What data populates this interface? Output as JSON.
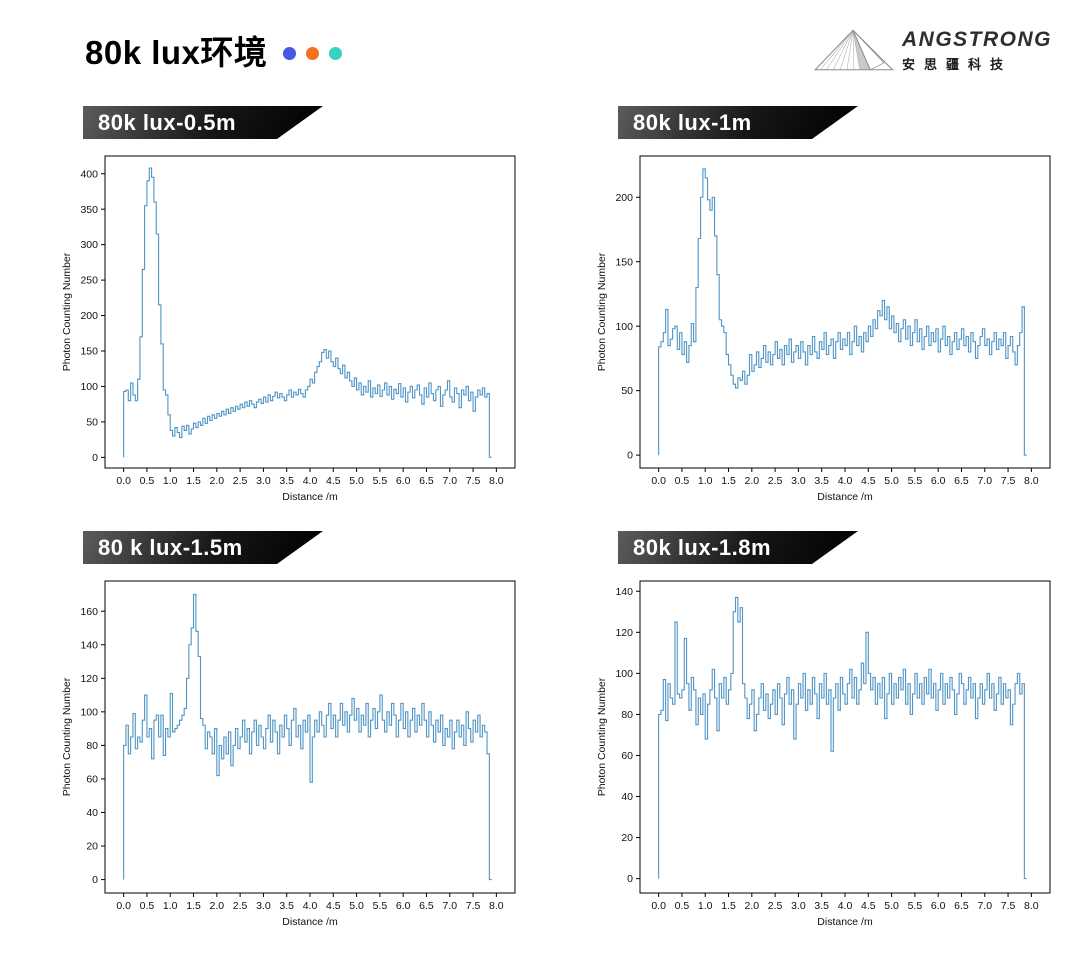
{
  "header": {
    "title": "80k lux环境",
    "dot_colors": [
      "#4856e6",
      "#f56f1c",
      "#34d3c2"
    ]
  },
  "logo": {
    "name": "ANGSTRONG",
    "subtitle": "安思疆科技"
  },
  "style": {
    "line_color": "#4f95c7",
    "spine_color": "#000000",
    "tick_text_color": "#111111"
  },
  "chart_data": [
    {
      "type": "line",
      "title": "80k lux-0.5m",
      "xlabel": "Distance /m",
      "ylabel": "Photon Counting Number",
      "xlim": [
        -0.4,
        8.4
      ],
      "ylim": [
        -15,
        425
      ],
      "xticks": [
        0.0,
        0.5,
        1.0,
        1.5,
        2.0,
        2.5,
        3.0,
        3.5,
        4.0,
        4.5,
        5.0,
        5.5,
        6.0,
        6.5,
        7.0,
        7.5,
        8.0
      ],
      "yticks": [
        0,
        50,
        100,
        150,
        200,
        250,
        300,
        350,
        400
      ],
      "x_start": 0.0,
      "x_step": 0.05,
      "values": [
        0,
        93,
        95,
        80,
        105,
        88,
        80,
        110,
        170,
        265,
        355,
        390,
        408,
        395,
        360,
        315,
        215,
        160,
        95,
        88,
        60,
        38,
        30,
        42,
        35,
        28,
        44,
        38,
        45,
        33,
        40,
        48,
        42,
        50,
        45,
        55,
        48,
        58,
        52,
        60,
        55,
        62,
        58,
        65,
        60,
        68,
        62,
        70,
        65,
        72,
        68,
        75,
        70,
        78,
        72,
        80,
        75,
        70,
        78,
        82,
        76,
        85,
        78,
        88,
        80,
        86,
        92,
        84,
        90,
        85,
        80,
        88,
        95,
        85,
        92,
        88,
        96,
        90,
        85,
        95,
        100,
        110,
        105,
        120,
        128,
        135,
        148,
        152,
        140,
        150,
        135,
        128,
        140,
        125,
        118,
        130,
        112,
        120,
        108,
        100,
        112,
        95,
        105,
        88,
        100,
        92,
        108,
        85,
        98,
        90,
        102,
        86,
        95,
        105,
        88,
        100,
        82,
        96,
        90,
        104,
        85,
        98,
        78,
        92,
        100,
        84,
        95,
        102,
        88,
        75,
        98,
        85,
        105,
        90,
        80,
        95,
        100,
        72,
        88,
        95,
        108,
        85,
        78,
        98,
        90,
        70,
        95,
        88,
        100,
        80,
        92,
        65,
        85,
        95,
        88,
        98,
        85,
        90,
        0
      ]
    },
    {
      "type": "line",
      "title": "80k lux-1m",
      "xlabel": "Distance /m",
      "ylabel": "Photon Counting Number",
      "xlim": [
        -0.4,
        8.4
      ],
      "ylim": [
        -10,
        232
      ],
      "xticks": [
        0.0,
        0.5,
        1.0,
        1.5,
        2.0,
        2.5,
        3.0,
        3.5,
        4.0,
        4.5,
        5.0,
        5.5,
        6.0,
        6.5,
        7.0,
        7.5,
        8.0
      ],
      "yticks": [
        0,
        50,
        100,
        150,
        200
      ],
      "x_start": 0.0,
      "x_step": 0.05,
      "values": [
        0,
        84,
        88,
        95,
        113,
        85,
        90,
        98,
        100,
        82,
        95,
        78,
        88,
        72,
        85,
        102,
        88,
        130,
        168,
        200,
        222,
        215,
        198,
        190,
        200,
        170,
        140,
        105,
        100,
        95,
        78,
        70,
        62,
        55,
        52,
        60,
        58,
        65,
        55,
        62,
        78,
        65,
        70,
        80,
        68,
        75,
        85,
        72,
        80,
        70,
        78,
        88,
        75,
        82,
        70,
        85,
        78,
        90,
        72,
        80,
        85,
        75,
        88,
        80,
        70,
        85,
        78,
        92,
        80,
        75,
        88,
        82,
        95,
        78,
        85,
        90,
        75,
        88,
        95,
        82,
        90,
        85,
        95,
        78,
        88,
        100,
        85,
        92,
        80,
        95,
        88,
        100,
        92,
        105,
        98,
        112,
        108,
        120,
        105,
        115,
        98,
        108,
        95,
        102,
        88,
        98,
        105,
        90,
        100,
        85,
        95,
        105,
        88,
        98,
        82,
        92,
        100,
        85,
        95,
        88,
        98,
        80,
        90,
        100,
        85,
        92,
        78,
        88,
        95,
        82,
        90,
        98,
        85,
        92,
        80,
        95,
        88,
        75,
        85,
        92,
        98,
        85,
        90,
        78,
        88,
        95,
        82,
        90,
        85,
        95,
        75,
        85,
        92,
        80,
        70,
        85,
        95,
        115,
        0
      ]
    },
    {
      "type": "line",
      "title": "80 k lux-1.5m",
      "xlabel": "Distance /m",
      "ylabel": "Photon Counting Number",
      "xlim": [
        -0.4,
        8.4
      ],
      "ylim": [
        -8,
        178
      ],
      "xticks": [
        0.0,
        0.5,
        1.0,
        1.5,
        2.0,
        2.5,
        3.0,
        3.5,
        4.0,
        4.5,
        5.0,
        5.5,
        6.0,
        6.5,
        7.0,
        7.5,
        8.0
      ],
      "yticks": [
        0,
        20,
        40,
        60,
        80,
        100,
        120,
        140,
        160
      ],
      "x_start": 0.0,
      "x_step": 0.05,
      "values": [
        0,
        80,
        92,
        75,
        85,
        99,
        78,
        85,
        82,
        95,
        110,
        85,
        90,
        72,
        95,
        98,
        85,
        98,
        74,
        90,
        85,
        111,
        88,
        90,
        92,
        95,
        98,
        102,
        120,
        140,
        150,
        170,
        148,
        133,
        96,
        92,
        78,
        88,
        85,
        75,
        90,
        62,
        80,
        72,
        85,
        75,
        88,
        68,
        80,
        90,
        78,
        85,
        95,
        82,
        90,
        75,
        88,
        95,
        80,
        92,
        85,
        78,
        90,
        98,
        82,
        95,
        88,
        75,
        92,
        85,
        98,
        90,
        80,
        95,
        102,
        85,
        92,
        78,
        95,
        88,
        98,
        58,
        85,
        95,
        88,
        100,
        92,
        85,
        98,
        105,
        90,
        98,
        85,
        95,
        105,
        92,
        100,
        88,
        98,
        108,
        95,
        102,
        88,
        98,
        92,
        105,
        85,
        95,
        102,
        90,
        100,
        110,
        95,
        88,
        100,
        92,
        105,
        98,
        85,
        95,
        105,
        90,
        100,
        85,
        95,
        102,
        88,
        98,
        92,
        105,
        95,
        85,
        100,
        92,
        82,
        95,
        88,
        98,
        80,
        90,
        85,
        95,
        78,
        88,
        95,
        85,
        92,
        80,
        100,
        90,
        82,
        95,
        88,
        98,
        85,
        92,
        88,
        75,
        0
      ]
    },
    {
      "type": "line",
      "title": "80k lux-1.8m",
      "xlabel": "Distance /m",
      "ylabel": "Photon Counting Number",
      "xlim": [
        -0.4,
        8.4
      ],
      "ylim": [
        -7,
        145
      ],
      "xticks": [
        0.0,
        0.5,
        1.0,
        1.5,
        2.0,
        2.5,
        3.0,
        3.5,
        4.0,
        4.5,
        5.0,
        5.5,
        6.0,
        6.5,
        7.0,
        7.5,
        8.0
      ],
      "yticks": [
        0,
        20,
        40,
        60,
        80,
        100,
        120,
        140
      ],
      "x_start": 0.0,
      "x_step": 0.05,
      "values": [
        0,
        80,
        82,
        97,
        77,
        95,
        88,
        85,
        125,
        90,
        88,
        92,
        117,
        95,
        82,
        98,
        92,
        75,
        88,
        80,
        90,
        68,
        85,
        92,
        102,
        88,
        72,
        95,
        88,
        98,
        85,
        92,
        100,
        130,
        137,
        125,
        132,
        95,
        88,
        78,
        85,
        92,
        72,
        80,
        88,
        95,
        82,
        90,
        78,
        85,
        92,
        80,
        95,
        88,
        75,
        90,
        98,
        85,
        92,
        68,
        85,
        95,
        88,
        100,
        82,
        92,
        85,
        98,
        90,
        78,
        95,
        88,
        100,
        85,
        92,
        62,
        88,
        95,
        82,
        98,
        90,
        85,
        95,
        102,
        88,
        98,
        85,
        92,
        105,
        95,
        120,
        100,
        92,
        98,
        85,
        95,
        88,
        98,
        78,
        90,
        100,
        85,
        95,
        88,
        98,
        92,
        102,
        85,
        95,
        80,
        90,
        100,
        88,
        95,
        85,
        98,
        90,
        102,
        88,
        95,
        82,
        92,
        100,
        85,
        95,
        88,
        98,
        92,
        80,
        90,
        100,
        95,
        85,
        92,
        98,
        88,
        95,
        78,
        88,
        95,
        85,
        92,
        100,
        88,
        95,
        82,
        90,
        98,
        85,
        95,
        88,
        92,
        75,
        85,
        95,
        100,
        90,
        95,
        0
      ]
    }
  ]
}
